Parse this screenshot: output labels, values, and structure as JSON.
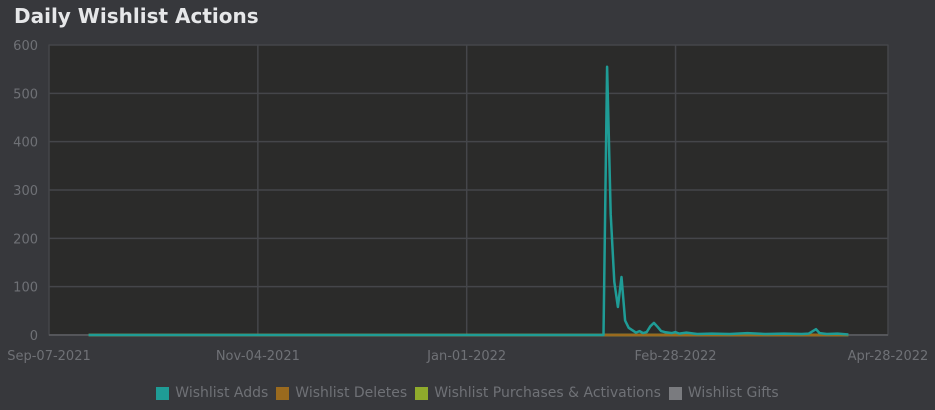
{
  "chart_data": {
    "type": "line",
    "title": "Daily Wishlist Actions",
    "ylim": [
      0,
      600
    ],
    "yticks": [
      0,
      100,
      200,
      300,
      400,
      500,
      600
    ],
    "xlim": [
      "2021-09-07",
      "2022-04-28"
    ],
    "xticks": [
      {
        "date": "2021-09-07",
        "label": "Sep-07-2021"
      },
      {
        "date": "2021-11-04",
        "label": "Nov-04-2021"
      },
      {
        "date": "2022-01-01",
        "label": "Jan-01-2022"
      },
      {
        "date": "2022-02-28",
        "label": "Feb-28-2022"
      },
      {
        "date": "2022-04-28",
        "label": "Apr-28-2022"
      }
    ],
    "grid": true,
    "legend_position": "bottom",
    "series": [
      {
        "name": "Wishlist Adds",
        "color": "#1f9c96",
        "points": [
          [
            "2021-09-18",
            0
          ],
          [
            "2022-02-08",
            0
          ],
          [
            "2022-02-09",
            555
          ],
          [
            "2022-02-10",
            250
          ],
          [
            "2022-02-11",
            110
          ],
          [
            "2022-02-12",
            58
          ],
          [
            "2022-02-13",
            120
          ],
          [
            "2022-02-14",
            30
          ],
          [
            "2022-02-15",
            15
          ],
          [
            "2022-02-16",
            10
          ],
          [
            "2022-02-17",
            5
          ],
          [
            "2022-02-18",
            8
          ],
          [
            "2022-02-19",
            4
          ],
          [
            "2022-02-20",
            6
          ],
          [
            "2022-02-21",
            18
          ],
          [
            "2022-02-22",
            25
          ],
          [
            "2022-02-23",
            17
          ],
          [
            "2022-02-24",
            8
          ],
          [
            "2022-02-25",
            6
          ],
          [
            "2022-02-26",
            5
          ],
          [
            "2022-02-27",
            4
          ],
          [
            "2022-02-28",
            6
          ],
          [
            "2022-03-01",
            3
          ],
          [
            "2022-03-03",
            5
          ],
          [
            "2022-03-06",
            2
          ],
          [
            "2022-03-10",
            3
          ],
          [
            "2022-03-15",
            2
          ],
          [
            "2022-03-20",
            4
          ],
          [
            "2022-03-25",
            2
          ],
          [
            "2022-03-30",
            3
          ],
          [
            "2022-04-04",
            2
          ],
          [
            "2022-04-06",
            3
          ],
          [
            "2022-04-08",
            12
          ],
          [
            "2022-04-09",
            4
          ],
          [
            "2022-04-11",
            2
          ],
          [
            "2022-04-14",
            3
          ],
          [
            "2022-04-17",
            1
          ]
        ]
      },
      {
        "name": "Wishlist Deletes",
        "color": "#9a6a1e",
        "points": [
          [
            "2021-09-18",
            0
          ],
          [
            "2022-04-17",
            0
          ]
        ]
      },
      {
        "name": "Wishlist Purchases & Activations",
        "color": "#8fab2c",
        "points": [
          [
            "2021-09-18",
            0
          ],
          [
            "2022-04-17",
            0
          ]
        ]
      },
      {
        "name": "Wishlist Gifts",
        "color": "#7a7b7f",
        "points": [
          [
            "2021-09-18",
            0
          ],
          [
            "2022-04-17",
            0
          ]
        ]
      }
    ]
  }
}
